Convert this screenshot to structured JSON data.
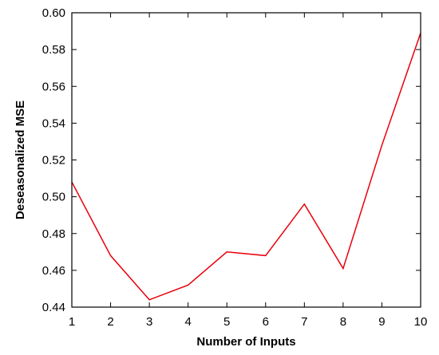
{
  "chart_data": {
    "type": "line",
    "title": "",
    "xlabel": "Number of Inputs",
    "ylabel": "Deseasonalized MSE",
    "xlim": [
      1,
      10
    ],
    "ylim": [
      0.44,
      0.6
    ],
    "xticks": [
      1,
      2,
      3,
      4,
      5,
      6,
      7,
      8,
      9,
      10
    ],
    "yticks": [
      "0.44",
      "0.46",
      "0.48",
      "0.50",
      "0.52",
      "0.54",
      "0.56",
      "0.58",
      "0.60"
    ],
    "grid": false,
    "legend": "none",
    "series": [
      {
        "color": "#e8000b",
        "x": [
          1,
          2,
          3,
          4,
          5,
          6,
          7,
          8,
          9,
          10
        ],
        "y": [
          0.508,
          0.468,
          0.444,
          0.452,
          0.47,
          0.468,
          0.496,
          0.461,
          0.528,
          0.589
        ]
      }
    ]
  }
}
